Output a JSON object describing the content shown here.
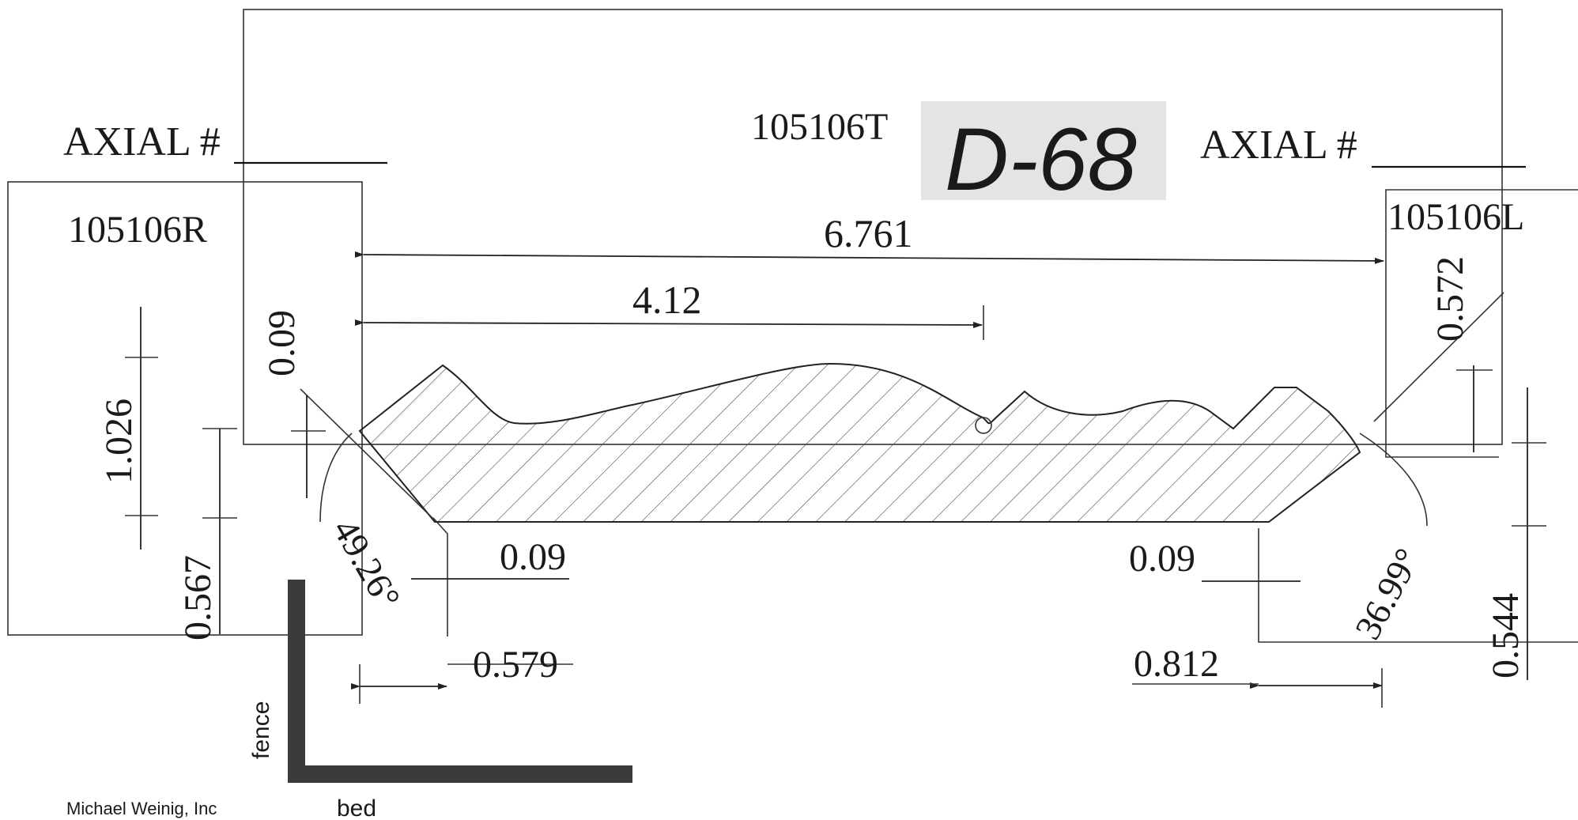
{
  "labels": {
    "axial_left": "AXIAL #",
    "axial_right": "AXIAL #",
    "head_left": "105106R",
    "head_top": "105106T",
    "head_right": "105106L",
    "handwritten": "D-68",
    "fence": "fence",
    "bed": "bed",
    "company": "Michael Weinig, Inc"
  },
  "dimensions": {
    "overall_width": "6.761",
    "to_bead": "4.12",
    "left_top_relief": "0.09",
    "left_height": "1.026",
    "left_offset": "0.567",
    "left_bottom_relief": "0.09",
    "left_bottom_width": "0.579",
    "left_angle": "49.26°",
    "right_bottom_relief": "0.09",
    "right_bottom_width": "0.812",
    "right_angle": "36.99°",
    "right_top_height": "0.572",
    "right_offset": "0.544"
  }
}
